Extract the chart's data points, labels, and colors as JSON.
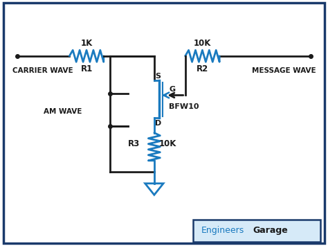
{
  "bg_color": "#ffffff",
  "border_color": "#1a3a6b",
  "line_color_black": "#1a1a1a",
  "line_color_blue": "#1a7abf",
  "text_color_black": "#1a1a1a",
  "text_color_blue": "#1a7abf",
  "figsize": [
    4.74,
    3.55
  ],
  "dpi": 100,
  "brand_engineers": "Engineers",
  "brand_garage": "Garage",
  "label_carrier": "CARRIER WAVE",
  "label_message": "MESSAGE WAVE",
  "label_am": "AM WAVE",
  "label_r1": "R1",
  "label_r1_val": "1K",
  "label_r2": "R2",
  "label_r2_val": "10K",
  "label_r3": "R3",
  "label_r3_val": "10K",
  "label_s": "S",
  "label_d": "D",
  "label_g": "G",
  "label_bfw": "BFW10",
  "xlim": [
    0,
    10
  ],
  "ylim": [
    0,
    7.5
  ]
}
